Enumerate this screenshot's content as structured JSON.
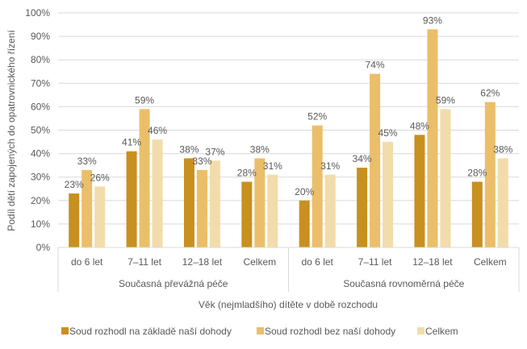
{
  "chart_data": {
    "type": "bar",
    "ylabel": "Podíl dětí zapojených do opatrovnického řízení",
    "xlabel": "Věk (nejmladšího) dítěte v době rozchodu",
    "ylim": [
      0,
      100
    ],
    "yticks": [
      "0%",
      "10%",
      "20%",
      "30%",
      "40%",
      "50%",
      "60%",
      "70%",
      "80%",
      "90%",
      "100%"
    ],
    "grid": true,
    "legend_position": "bottom",
    "groups": [
      {
        "label": "Současná převážná péče",
        "categories": [
          "do 6 let",
          "7–11 let",
          "12–18 let",
          "Celkem"
        ]
      },
      {
        "label": "Současná rovnoměrná péče",
        "categories": [
          "do 6 let",
          "7–11 let",
          "12–18 let",
          "Celkem"
        ]
      }
    ],
    "series": [
      {
        "name": "Soud rozhodl na základě naší dohody",
        "color": "#C8901E",
        "values": [
          23,
          41,
          38,
          28,
          20,
          34,
          48,
          28
        ]
      },
      {
        "name": "Soud rozhodl bez naší dohody",
        "color": "#EBBE6A",
        "values": [
          33,
          59,
          33,
          38,
          52,
          74,
          93,
          62
        ]
      },
      {
        "name": "Celkem",
        "color": "#F3DCAB",
        "values": [
          26,
          46,
          37,
          31,
          31,
          45,
          59,
          38
        ]
      }
    ]
  }
}
